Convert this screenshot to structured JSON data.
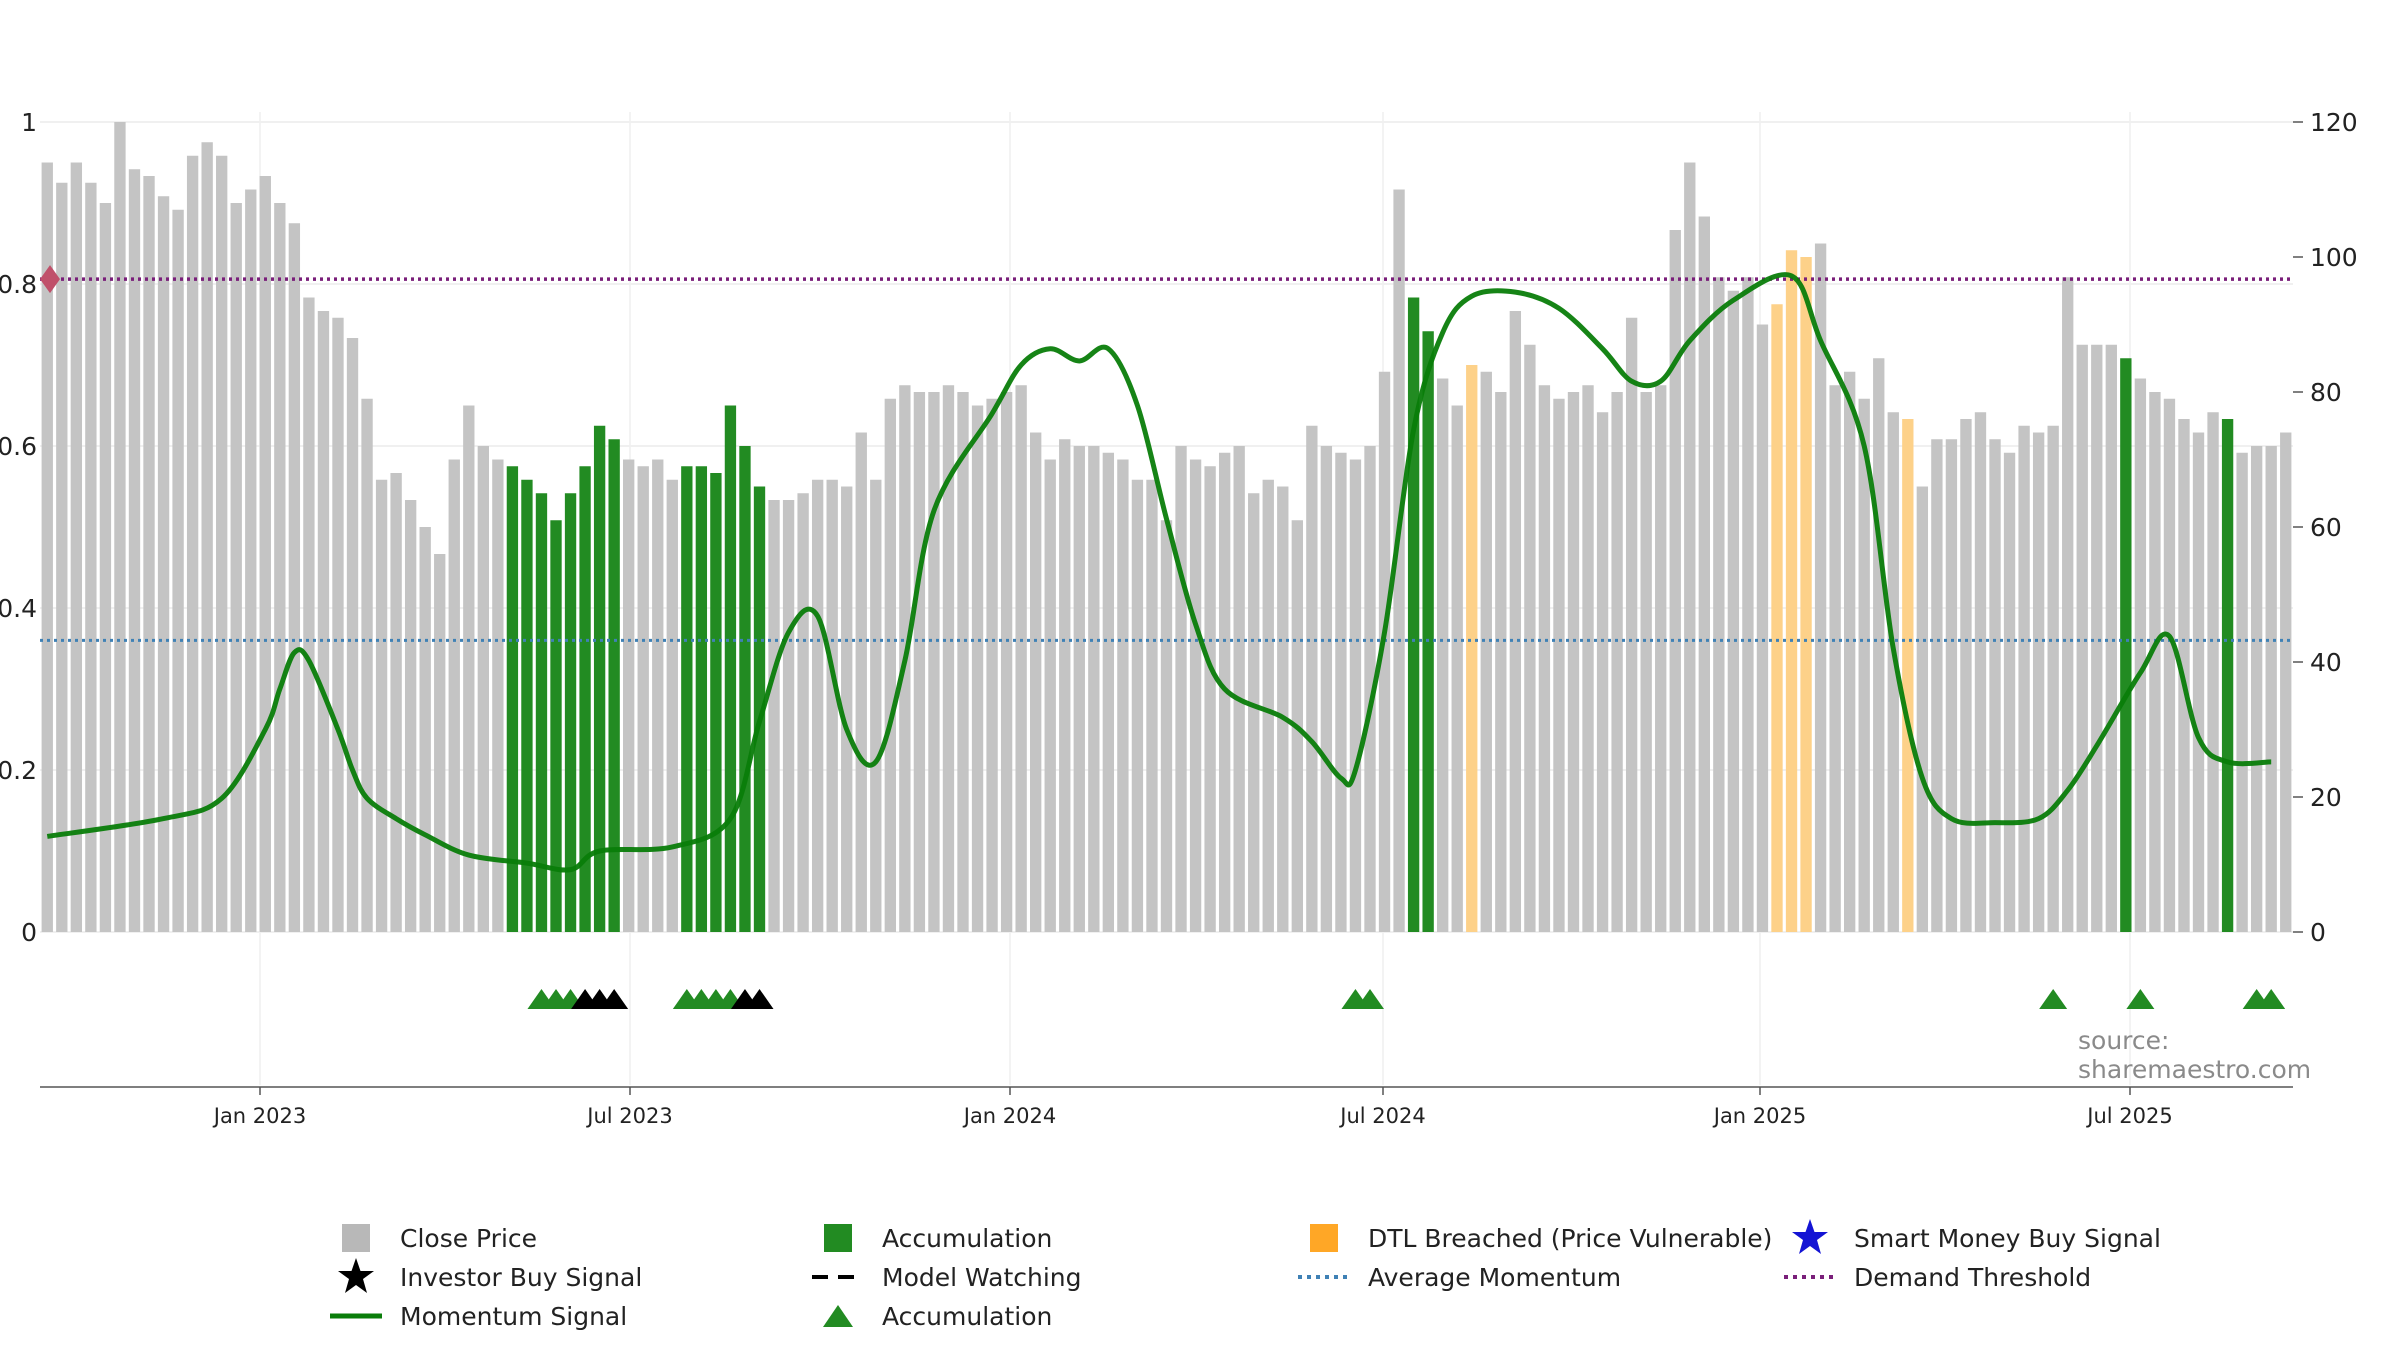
{
  "chart_data": {
    "type": "bar",
    "title": "",
    "x_labels": [
      "Jan 2023",
      "Jul 2023",
      "Jan 2024",
      "Jul 2024",
      "Jan 2025",
      "Jul 2025"
    ],
    "left_axis": {
      "ticks": [
        "0",
        "0.2",
        "0.4",
        "0.6",
        "0.8",
        "1"
      ],
      "range": [
        0,
        1
      ],
      "label": ""
    },
    "right_axis": {
      "ticks": [
        "0",
        "20",
        "40",
        "60",
        "80",
        "100",
        "120"
      ],
      "range": [
        0,
        120
      ],
      "label": ""
    },
    "bar_categories": {
      "C": {
        "name": "Close Price",
        "color": "#c4c4c4"
      },
      "A": {
        "name": "Accumulation",
        "color": "#228b22"
      },
      "D": {
        "name": "DTL Breached (Price Vulnerable)",
        "color": "#fdd189"
      }
    },
    "close_price": {
      "values": [
        114,
        111,
        114,
        111,
        108,
        120,
        113,
        112,
        109,
        107,
        115,
        117,
        115,
        108,
        110,
        112,
        108,
        105,
        94,
        92,
        91,
        88,
        79,
        67,
        68,
        64,
        60,
        56,
        70,
        78,
        72,
        70,
        69,
        67,
        65,
        61,
        65,
        69,
        75,
        73,
        70,
        69,
        70,
        67,
        69,
        69,
        68,
        78,
        72,
        66,
        64,
        64,
        65,
        67,
        67,
        66,
        74,
        67,
        79,
        81,
        80,
        80,
        81,
        80,
        78,
        79,
        80,
        81,
        74,
        70,
        73,
        72,
        72,
        71,
        70,
        67,
        67,
        61,
        72,
        70,
        69,
        71,
        72,
        65,
        67,
        66,
        61,
        75,
        72,
        71,
        70,
        72,
        83,
        110,
        94,
        89,
        82,
        78,
        84,
        83,
        80,
        92,
        87,
        81,
        79,
        80,
        81,
        77,
        80,
        91,
        80,
        81,
        104,
        114,
        106,
        97,
        95,
        97,
        90,
        93,
        101,
        100,
        102,
        81,
        83,
        79,
        85,
        77,
        76,
        66,
        73,
        73,
        76,
        77,
        73,
        71,
        75,
        74,
        75,
        97,
        87,
        87,
        87,
        85,
        82,
        80,
        79,
        76,
        74,
        77,
        76,
        71,
        72,
        72,
        74
      ],
      "category": "CCCCCCCCCCCCCCCCCCCCCCCCCCCCCCCCAAAAAAAACCCCAAAAAACCCCCCCCCCCCCCCCCCCCCCCCCCCCCCCCCCCCCCCCCCCCAACCDCCCCCCCCCCCCCCCCCCCCDDDCCCCCCDCCCCCCCCCCCCCCACCCCCCACCCCCCCCAA"
    },
    "momentum_signal": {
      "name": "Momentum Signal",
      "color": "#0a7d0a",
      "points": [
        [
          0,
          0.118
        ],
        [
          8,
          0.14
        ],
        [
          12,
          0.165
        ],
        [
          15,
          0.25
        ],
        [
          16,
          0.3
        ],
        [
          17,
          0.345
        ],
        [
          18,
          0.335
        ],
        [
          20,
          0.25
        ],
        [
          21,
          0.2
        ],
        [
          22,
          0.165
        ],
        [
          24,
          0.14
        ],
        [
          26,
          0.12
        ],
        [
          29,
          0.095
        ],
        [
          33,
          0.085
        ],
        [
          36,
          0.077
        ],
        [
          38,
          0.1
        ],
        [
          43,
          0.105
        ],
        [
          47,
          0.14
        ],
        [
          49,
          0.26
        ],
        [
          51,
          0.37
        ],
        [
          53,
          0.39
        ],
        [
          55,
          0.25
        ],
        [
          57,
          0.21
        ],
        [
          59,
          0.335
        ],
        [
          61,
          0.52
        ],
        [
          65,
          0.64
        ],
        [
          67,
          0.7
        ],
        [
          69,
          0.72
        ],
        [
          71,
          0.705
        ],
        [
          73,
          0.72
        ],
        [
          75,
          0.65
        ],
        [
          77,
          0.51
        ],
        [
          79,
          0.38
        ],
        [
          81,
          0.3
        ],
        [
          85,
          0.265
        ],
        [
          87,
          0.235
        ],
        [
          89,
          0.19
        ],
        [
          90,
          0.2
        ],
        [
          92,
          0.37
        ],
        [
          94,
          0.62
        ],
        [
          96,
          0.74
        ],
        [
          98,
          0.785
        ],
        [
          101,
          0.79
        ],
        [
          104,
          0.77
        ],
        [
          107,
          0.72
        ],
        [
          109,
          0.68
        ],
        [
          111,
          0.68
        ],
        [
          113,
          0.73
        ],
        [
          116,
          0.78
        ],
        [
          120,
          0.81
        ],
        [
          122,
          0.73
        ],
        [
          125,
          0.6
        ],
        [
          127,
          0.35
        ],
        [
          129,
          0.19
        ],
        [
          131,
          0.14
        ],
        [
          134,
          0.135
        ],
        [
          137,
          0.14
        ],
        [
          139,
          0.175
        ],
        [
          141,
          0.23
        ],
        [
          144,
          0.32
        ],
        [
          146,
          0.365
        ],
        [
          148,
          0.24
        ],
        [
          150,
          0.21
        ],
        [
          153,
          0.21
        ]
      ]
    },
    "average_momentum": {
      "name": "Average Momentum",
      "value": 0.36,
      "color": "#3f81b5"
    },
    "demand_threshold": {
      "name": "Demand Threshold",
      "value": 0.806,
      "color": "#7a1f7a"
    },
    "signals": [
      {
        "name": "Accumulation",
        "type": "triangle",
        "color": "#228b22",
        "indices": [
          34,
          35,
          36,
          44,
          45,
          46,
          47,
          90,
          91,
          138,
          144,
          152,
          153
        ]
      },
      {
        "name": "Investor Buy Signal",
        "type": "triangle-black",
        "color": "#000000",
        "indices": [
          37,
          38,
          39,
          48,
          49
        ]
      }
    ],
    "legend": [
      {
        "label": "Close Price",
        "symbol": "square",
        "color": "#b8b8b8"
      },
      {
        "label": "Accumulation",
        "symbol": "square",
        "color": "#228b22"
      },
      {
        "label": "DTL Breached (Price Vulnerable)",
        "symbol": "square",
        "color": "#ffa726"
      },
      {
        "label": "Smart Money Buy Signal",
        "symbol": "star",
        "color": "#1414d4"
      },
      {
        "label": "Investor Buy Signal",
        "symbol": "star",
        "color": "#000000"
      },
      {
        "label": "Model Watching",
        "symbol": "dash",
        "color": "#000000"
      },
      {
        "label": "Average Momentum",
        "symbol": "dot-line",
        "color": "#3f81b5"
      },
      {
        "label": "Demand Threshold",
        "symbol": "dot-line",
        "color": "#7a1f7a"
      },
      {
        "label": "Momentum Signal",
        "symbol": "line",
        "color": "#0a7d0a"
      },
      {
        "label": "Accumulation",
        "symbol": "triangle",
        "color": "#228b22"
      }
    ],
    "source": "source: sharemaestro.com"
  }
}
